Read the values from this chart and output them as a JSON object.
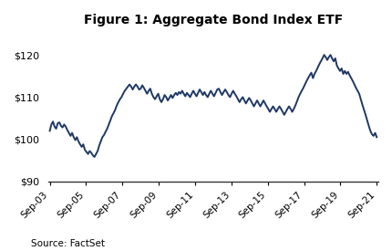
{
  "title": "Figure 1: Aggregate Bond Index ETF",
  "source": "Source: FactSet",
  "line_color": "#1F3864",
  "background_color": "#ffffff",
  "ylim": [
    90,
    125
  ],
  "yticks": [
    90,
    100,
    110,
    120
  ],
  "ytick_labels": [
    "$90",
    "$100",
    "$110",
    "$120"
  ],
  "xtick_labels": [
    "Sep-03",
    "Sep-05",
    "Sep-07",
    "Sep-09",
    "Sep-11",
    "Sep-13",
    "Sep-15",
    "Sep-17",
    "Sep-19",
    "Sep-21"
  ],
  "series": [
    102.0,
    103.5,
    104.2,
    103.0,
    102.5,
    103.8,
    104.0,
    103.2,
    102.8,
    103.5,
    103.0,
    102.2,
    101.5,
    100.8,
    101.5,
    100.5,
    99.8,
    100.5,
    99.5,
    98.8,
    98.2,
    98.8,
    97.5,
    97.0,
    96.5,
    97.2,
    96.8,
    96.2,
    95.8,
    96.5,
    97.2,
    98.5,
    99.5,
    100.5,
    101.0,
    101.8,
    102.5,
    103.5,
    104.5,
    105.5,
    106.2,
    107.0,
    108.0,
    108.8,
    109.5,
    110.0,
    110.8,
    111.5,
    112.0,
    112.5,
    113.0,
    112.5,
    111.8,
    112.5,
    113.0,
    112.5,
    111.8,
    112.0,
    112.8,
    112.2,
    111.5,
    110.8,
    111.5,
    112.0,
    110.8,
    110.0,
    109.5,
    110.2,
    110.8,
    109.5,
    108.8,
    109.5,
    110.5,
    110.0,
    109.2,
    109.8,
    110.5,
    109.8,
    110.5,
    111.0,
    110.5,
    111.2,
    110.8,
    111.5,
    110.8,
    110.2,
    111.0,
    110.5,
    110.0,
    110.8,
    111.5,
    110.8,
    110.2,
    111.0,
    111.8,
    111.2,
    110.5,
    111.2,
    110.5,
    110.0,
    110.8,
    111.5,
    110.8,
    110.2,
    111.0,
    111.8,
    112.0,
    111.2,
    110.5,
    111.2,
    111.8,
    111.2,
    110.5,
    110.0,
    110.8,
    111.5,
    110.8,
    110.2,
    109.5,
    108.8,
    109.5,
    110.0,
    109.2,
    108.5,
    109.2,
    109.8,
    109.2,
    108.5,
    107.8,
    108.5,
    109.2,
    108.5,
    107.8,
    108.5,
    109.2,
    108.5,
    107.8,
    107.2,
    106.5,
    107.2,
    107.8,
    107.2,
    106.5,
    107.2,
    107.8,
    107.2,
    106.5,
    105.8,
    106.5,
    107.2,
    107.8,
    107.2,
    106.5,
    107.2,
    108.0,
    109.0,
    110.0,
    110.8,
    111.5,
    112.2,
    113.0,
    113.8,
    114.5,
    115.2,
    115.8,
    114.5,
    115.5,
    116.2,
    117.0,
    117.8,
    118.5,
    119.2,
    120.0,
    119.5,
    118.8,
    119.5,
    120.0,
    119.2,
    118.5,
    119.2,
    117.5,
    116.8,
    116.2,
    116.8,
    115.5,
    116.2,
    115.5,
    116.0,
    115.2,
    114.5,
    113.8,
    113.0,
    112.2,
    111.5,
    110.8,
    109.5,
    108.2,
    107.0,
    105.8,
    104.5,
    103.2,
    102.0,
    101.2,
    100.8,
    101.5,
    100.5
  ]
}
